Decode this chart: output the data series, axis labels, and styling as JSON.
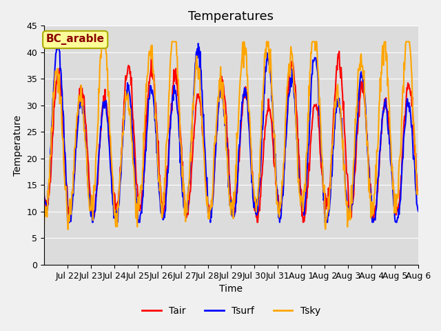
{
  "title": "Temperatures",
  "xlabel": "Time",
  "ylabel": "Temperature",
  "ylim": [
    0,
    45
  ],
  "yticks": [
    0,
    5,
    10,
    15,
    20,
    25,
    30,
    35,
    40,
    45
  ],
  "line_colors": {
    "Tair": "#ff0000",
    "Tsurf": "#0000ff",
    "Tsky": "#ffa500"
  },
  "legend_label": "BC_arable",
  "legend_text_color": "#8b0000",
  "legend_box_facecolor": "#ffff99",
  "legend_box_edgecolor": "#aaaa00",
  "fig_bg_color": "#f0f0f0",
  "plot_bg_color": "#dcdcdc",
  "title_fontsize": 13,
  "axis_label_fontsize": 10,
  "tick_label_fontsize": 9,
  "line_width": 1.5,
  "n_days": 16,
  "pts_per_day": 48,
  "x_tick_labels": [
    "Jul 22",
    "Jul 23",
    "Jul 24",
    "Jul 25",
    "Jul 26",
    "Jul 27",
    "Jul 28",
    "Jul 29",
    "Jul 30",
    "Jul 31",
    "Aug 1",
    "Aug 2",
    "Aug 3",
    "Aug 4",
    "Aug 5",
    "Aug 6"
  ]
}
